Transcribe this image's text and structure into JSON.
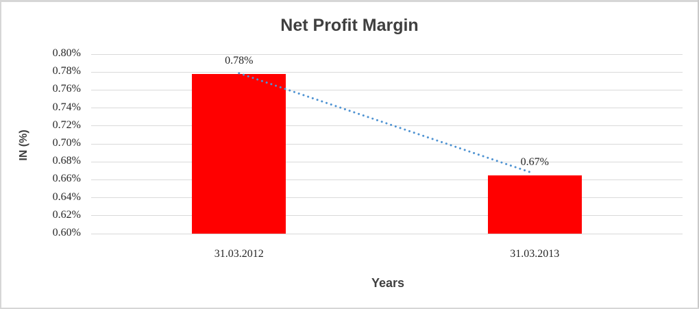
{
  "chart": {
    "title": "Net Profit Margin",
    "ylabel": "IN (%)",
    "xlabel": "Years"
  },
  "chart_data": {
    "type": "bar",
    "title": "Net Profit Margin",
    "xlabel": "Years",
    "ylabel": "IN (%)",
    "categories": [
      "31.03.2012",
      "31.03.2013"
    ],
    "values": [
      0.778,
      0.665
    ],
    "data_labels": [
      "0.78%",
      "0.67%"
    ],
    "y_tick_labels": [
      "0.80%",
      "0.78%",
      "0.76%",
      "0.74%",
      "0.72%",
      "0.70%",
      "0.68%",
      "0.66%",
      "0.64%",
      "0.62%",
      "0.60%"
    ],
    "y_tick_values": [
      0.8,
      0.78,
      0.76,
      0.74,
      0.72,
      0.7,
      0.68,
      0.66,
      0.64,
      0.62,
      0.6
    ],
    "ylim": [
      0.6,
      0.8
    ],
    "grid": true,
    "legend": "none",
    "trendline": {
      "style": "dotted",
      "connects": "bar tops, descending from 0.78% to 0.67%",
      "color": "#4f93d2"
    },
    "colors": {
      "bar": "#ff0000",
      "trendline": "#4f93d2",
      "gridline": "#d9d9d9",
      "tick_text": "#262626",
      "title_text": "#3f3f3f"
    }
  }
}
